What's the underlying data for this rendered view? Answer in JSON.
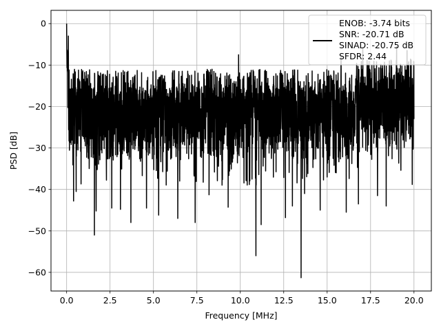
{
  "chart_data": {
    "type": "line",
    "title": "",
    "xlabel": "Frequency [MHz]",
    "ylabel": "PSD [dB]",
    "xlim": [
      -0.9,
      21.0
    ],
    "ylim": [
      -64.5,
      3.2
    ],
    "xticks": [
      0.0,
      2.5,
      5.0,
      7.5,
      10.0,
      12.5,
      15.0,
      17.5,
      20.0
    ],
    "xtick_labels": [
      "0.0",
      "2.5",
      "5.0",
      "7.5",
      "10.0",
      "12.5",
      "15.0",
      "17.5",
      "20.0"
    ],
    "yticks": [
      0,
      -10,
      -20,
      -30,
      -40,
      -50,
      -60
    ],
    "ytick_labels": [
      "0",
      "−10",
      "−20",
      "−30",
      "−40",
      "−50",
      "−60"
    ],
    "grid": true,
    "legend_position": "top-right",
    "legend_lines": [
      "ENOB: -3.74 bits",
      "SNR: -20.71 dB",
      "SINAD: -20.75 dB",
      "SFDR: 2.44"
    ],
    "line_color": "#000000",
    "series": [
      {
        "x_start": 0.0,
        "x_end": 20.0,
        "spikes": [
          {
            "x": 0.0,
            "y": 0.0
          },
          {
            "x": 0.04,
            "y": -7.0
          },
          {
            "x": 0.1,
            "y": -3.0
          },
          {
            "x": 0.4,
            "y": -42.8
          },
          {
            "x": 0.55,
            "y": -40.5
          },
          {
            "x": 1.6,
            "y": -51.0
          },
          {
            "x": 1.7,
            "y": -45.2
          },
          {
            "x": 2.6,
            "y": -44.5
          },
          {
            "x": 3.1,
            "y": -44.8
          },
          {
            "x": 3.7,
            "y": -48.0
          },
          {
            "x": 4.6,
            "y": -44.5
          },
          {
            "x": 5.3,
            "y": -46.2
          },
          {
            "x": 6.4,
            "y": -47.0
          },
          {
            "x": 7.4,
            "y": -48.0
          },
          {
            "x": 8.2,
            "y": -41.3
          },
          {
            "x": 9.3,
            "y": -44.3
          },
          {
            "x": 10.9,
            "y": -56.0
          },
          {
            "x": 11.2,
            "y": -48.5
          },
          {
            "x": 12.6,
            "y": -46.8
          },
          {
            "x": 13.0,
            "y": -44.0
          },
          {
            "x": 13.5,
            "y": -61.3
          },
          {
            "x": 13.7,
            "y": -41.0
          },
          {
            "x": 14.6,
            "y": -45.0
          },
          {
            "x": 16.1,
            "y": -45.5
          },
          {
            "x": 16.8,
            "y": -43.5
          },
          {
            "x": 17.9,
            "y": -41.5
          },
          {
            "x": 18.4,
            "y": -44.0
          },
          {
            "x": 19.9,
            "y": -38.8
          },
          {
            "x": 9.9,
            "y": -7.5
          },
          {
            "x": 15.8,
            "y": -8.0
          },
          {
            "x": 17.05,
            "y": -6.0
          },
          {
            "x": 19.0,
            "y": -5.5
          },
          {
            "x": 19.6,
            "y": -6.5
          }
        ]
      }
    ]
  }
}
